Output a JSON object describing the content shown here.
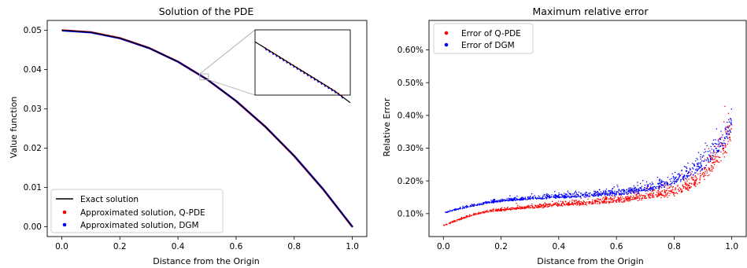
{
  "chart_data": [
    {
      "type": "line",
      "title": "Solution of the PDE",
      "xlabel": "Distance from the Origin",
      "ylabel": "Value function",
      "xlim": [
        -0.05,
        1.05
      ],
      "ylim": [
        -0.0025,
        0.0525
      ],
      "x_ticks": [
        0.0,
        0.2,
        0.4,
        0.6,
        0.8,
        1.0
      ],
      "x_tick_labels": [
        "0.0",
        "0.2",
        "0.4",
        "0.6",
        "0.8",
        "1.0"
      ],
      "y_ticks": [
        0.0,
        0.01,
        0.02,
        0.03,
        0.04,
        0.05
      ],
      "y_tick_labels": [
        "0.00",
        "0.01",
        "0.02",
        "0.03",
        "0.04",
        "0.05"
      ],
      "legend_position": "lower-left",
      "inset_zoom": {
        "x_range": [
          0.475,
          0.505
        ],
        "y_range": [
          0.0374,
          0.0389
        ]
      },
      "series": [
        {
          "name": "Exact solution",
          "kind": "line",
          "color": "#000000",
          "formula": "0.05*(1-x^2)",
          "x": [
            0.0,
            0.1,
            0.2,
            0.3,
            0.4,
            0.5,
            0.6,
            0.7,
            0.8,
            0.9,
            1.0
          ],
          "y": [
            0.05,
            0.0495,
            0.048,
            0.0455,
            0.042,
            0.0375,
            0.032,
            0.0255,
            0.018,
            0.0095,
            0.0
          ]
        },
        {
          "name": "Approximated solution, Q-PDE",
          "kind": "scatter",
          "color": "#ff0000"
        },
        {
          "name": "Approximated solution, DGM",
          "kind": "scatter",
          "color": "#0000ff"
        }
      ]
    },
    {
      "type": "scatter",
      "title": "Maximum relative error",
      "xlabel": "Distance from the Origin",
      "ylabel": "Relative Error",
      "xlim": [
        -0.05,
        1.05
      ],
      "ylim": [
        0.0003,
        0.0069
      ],
      "x_ticks": [
        0.0,
        0.2,
        0.4,
        0.6,
        0.8,
        1.0
      ],
      "x_tick_labels": [
        "0.0",
        "0.2",
        "0.4",
        "0.6",
        "0.8",
        "1.0"
      ],
      "y_ticks": [
        0.001,
        0.002,
        0.003,
        0.004,
        0.005,
        0.006
      ],
      "y_tick_labels": [
        "0.10%",
        "0.20%",
        "0.30%",
        "0.40%",
        "0.50%",
        "0.60%"
      ],
      "legend_position": "top-left",
      "series": [
        {
          "name": "Error of Q-PDE",
          "color": "#ff0000",
          "x": [
            0.0,
            0.05,
            0.1,
            0.15,
            0.2,
            0.3,
            0.4,
            0.5,
            0.6,
            0.7,
            0.8,
            0.85,
            0.9,
            0.95,
            0.98,
            1.0
          ],
          "y": [
            0.00063,
            0.0008,
            0.00095,
            0.00105,
            0.0011,
            0.00118,
            0.00125,
            0.0013,
            0.00138,
            0.00148,
            0.0016,
            0.0018,
            0.0021,
            0.0026,
            0.003,
            0.0034
          ]
        },
        {
          "name": "Error of DGM",
          "color": "#0000ff",
          "x": [
            0.0,
            0.05,
            0.1,
            0.15,
            0.2,
            0.3,
            0.4,
            0.5,
            0.6,
            0.7,
            0.8,
            0.85,
            0.9,
            0.95,
            0.98,
            1.0
          ],
          "y": [
            0.00102,
            0.00113,
            0.00123,
            0.00132,
            0.00138,
            0.00145,
            0.0015,
            0.00155,
            0.0016,
            0.0017,
            0.00195,
            0.00215,
            0.00245,
            0.0029,
            0.0033,
            0.0036
          ]
        }
      ]
    }
  ]
}
